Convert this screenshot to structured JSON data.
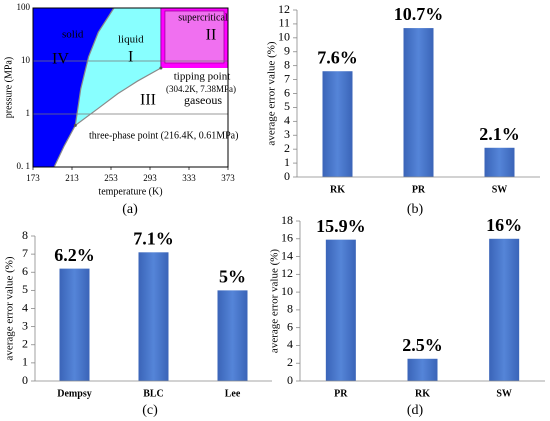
{
  "chart_data": [
    {
      "type": "phase",
      "label": "(a)",
      "xlabel": "temperature (K)",
      "ylabel": "pressure (MPa)",
      "xlim": [
        173,
        373
      ],
      "xticks": [
        173,
        213,
        253,
        293,
        333,
        373
      ],
      "ylim": [
        0.1,
        100
      ],
      "yticks": [
        {
          "value": 0.1,
          "label": "0. 1"
        },
        1,
        10,
        100
      ],
      "log_y": true,
      "grid": true,
      "sublimation_curve": {
        "x": [
          194.7,
          205,
          216.4
        ],
        "y": [
          0.1,
          0.25,
          0.61
        ]
      },
      "melting_curve": {
        "x": [
          216.4,
          222,
          230,
          240,
          256
        ],
        "y": [
          0.61,
          3,
          12,
          35,
          100
        ]
      },
      "vaporization_curve": {
        "x": [
          216.4,
          240,
          260,
          280,
          304.2
        ],
        "y": [
          0.61,
          1.28,
          2.42,
          4.16,
          7.38
        ]
      },
      "critical_point": {
        "x": 304.2,
        "y": 7.38
      },
      "triple_point": {
        "x": 216.4,
        "y": 0.61
      },
      "colors": {
        "solid": "#0000ff",
        "liquid": "#88ffff",
        "supercritical": "#ff00ff",
        "gaseous": "#ffffff",
        "curve": "#8a8a8a"
      },
      "region_labels": [
        "solid",
        "IV",
        "liquid",
        "I",
        "supercritical",
        "II",
        "tipping point",
        "(304.2K, 7.38MPa)",
        "III",
        "gaseous",
        "three-phase point (216.4K, 0.61MPa)"
      ]
    },
    {
      "type": "bar",
      "label": "(b)",
      "ylabel": "average error value (%)",
      "categories": [
        "RK",
        "PR",
        "SW"
      ],
      "values": [
        7.6,
        10.7,
        2.1
      ],
      "value_labels": [
        "7.6%",
        "10.7%",
        "2.1%"
      ],
      "color": "#4472c4",
      "ylim": [
        0,
        12
      ],
      "yticks": [
        0,
        1,
        2,
        3,
        4,
        5,
        6,
        7,
        8,
        9,
        10,
        11,
        12
      ]
    },
    {
      "type": "bar",
      "label": "(c)",
      "ylabel": "average error value (%)",
      "categories": [
        "Dempsy",
        "BLC",
        "Lee"
      ],
      "values": [
        6.2,
        7.1,
        5
      ],
      "value_labels": [
        "6.2%",
        "7.1%",
        "5%"
      ],
      "color": "#4472c4",
      "ylim": [
        0,
        8
      ],
      "yticks": [
        0,
        1,
        2,
        3,
        4,
        5,
        6,
        7,
        8
      ]
    },
    {
      "type": "bar",
      "label": "(d)",
      "ylabel": "average error value (%)",
      "categories": [
        "PR",
        "RK",
        "SW"
      ],
      "values": [
        15.9,
        2.5,
        16
      ],
      "value_labels": [
        "15.9%",
        "2.5%",
        "16%"
      ],
      "color": "#4472c4",
      "ylim": [
        0,
        18
      ],
      "yticks": [
        0,
        2,
        4,
        6,
        8,
        10,
        12,
        14,
        16,
        18
      ]
    }
  ]
}
